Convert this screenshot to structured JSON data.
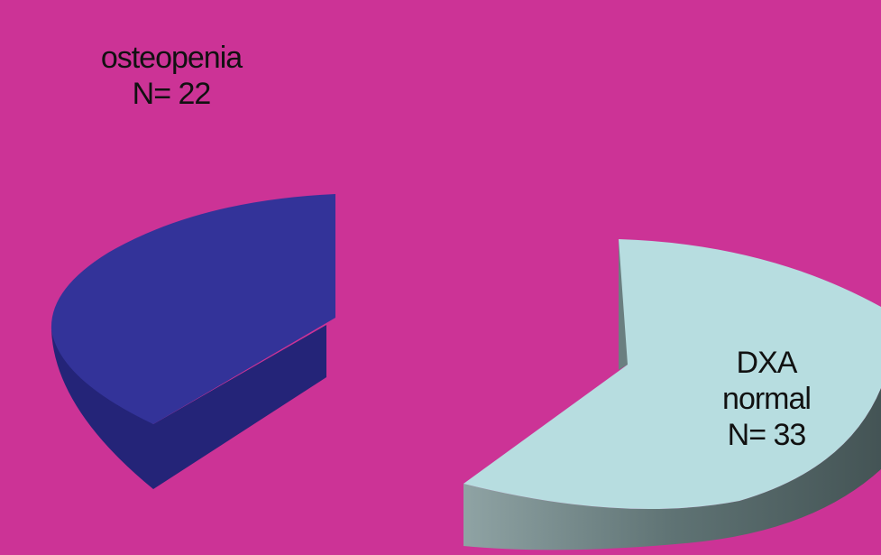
{
  "page": {
    "background": "#cc3396"
  },
  "chart_data": {
    "type": "pie",
    "style": "3d exploded pie, partial view",
    "title": "",
    "slices": [
      {
        "label_lines": [
          "osteopenia",
          "N= 22"
        ],
        "value": 22,
        "color": "#333399",
        "side_color": "#242478"
      },
      {
        "label_lines": [
          "DXA",
          "normal",
          "N= 33"
        ],
        "value": 33,
        "color": "#b7dde0",
        "side_color": "#6a7f80"
      }
    ],
    "legend": "none",
    "data_labels": "slice labels near slices"
  }
}
